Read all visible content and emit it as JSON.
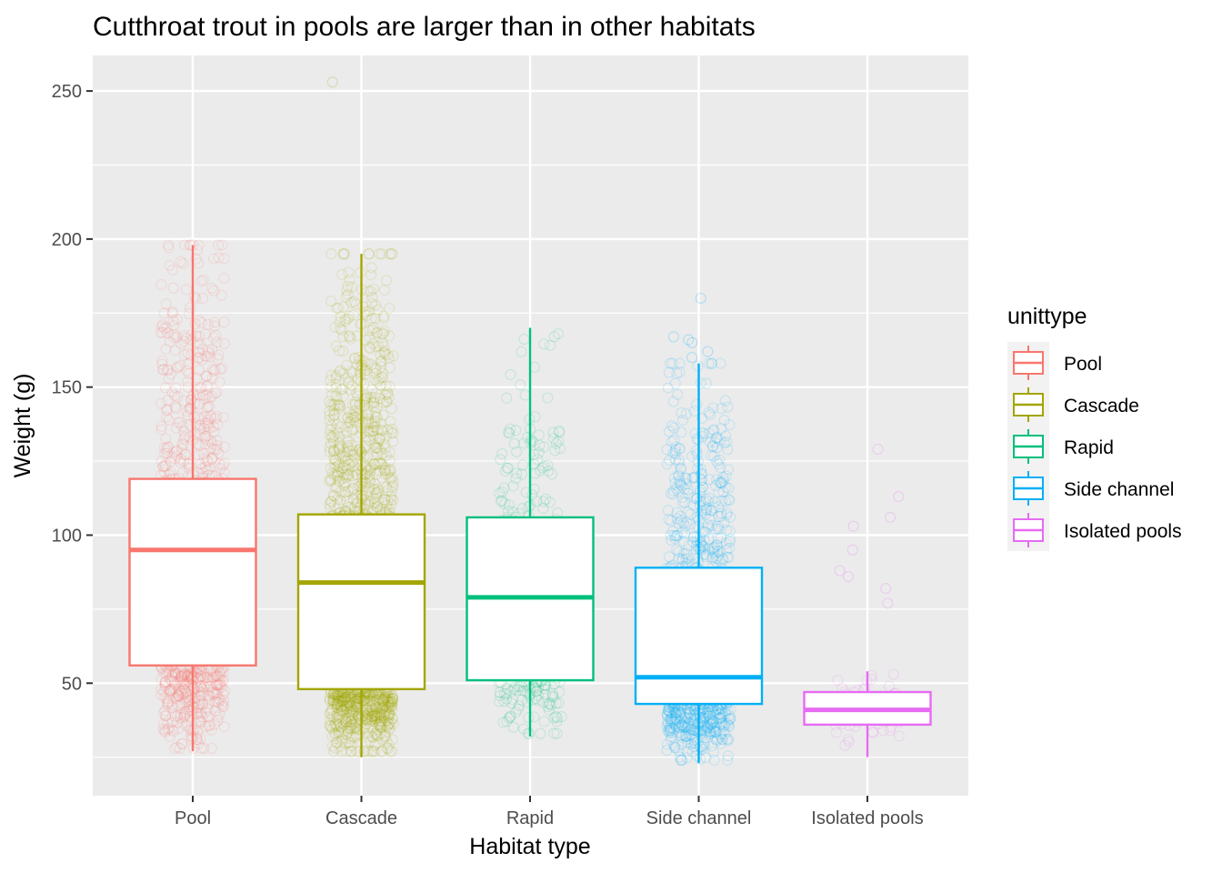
{
  "chart_data": {
    "type": "box",
    "title": "Cutthroat trout in pools are larger than in other habitats",
    "xlabel": "Habitat type",
    "ylabel": "Weight (g)",
    "ylim": [
      12,
      262
    ],
    "y_ticks": [
      50,
      100,
      150,
      200,
      250
    ],
    "y_minor_ticks": [
      25,
      75,
      125,
      175,
      225
    ],
    "grid": true,
    "legend": {
      "title": "unittype",
      "position": "right"
    },
    "categories": [
      "Pool",
      "Cascade",
      "Rapid",
      "Side channel",
      "Isolated pools"
    ],
    "series": [
      {
        "name": "Pool",
        "color": "#F8766D",
        "whisker_low": 27,
        "q1": 56,
        "median": 95,
        "q3": 119,
        "whisker_high": 198,
        "points": {
          "count": 1100,
          "min": 28,
          "max": 198,
          "outliers": []
        }
      },
      {
        "name": "Cascade",
        "color": "#A3A500",
        "whisker_low": 25,
        "q1": 48,
        "median": 84,
        "q3": 107,
        "whisker_high": 195,
        "points": {
          "count": 2000,
          "min": 27,
          "max": 195,
          "outliers": [
            253
          ]
        }
      },
      {
        "name": "Rapid",
        "color": "#00BF7D",
        "whisker_low": 32,
        "q1": 51,
        "median": 79,
        "q3": 106,
        "whisker_high": 170,
        "points": {
          "count": 320,
          "min": 33,
          "max": 168,
          "outliers": []
        }
      },
      {
        "name": "Side channel",
        "color": "#00B0F6",
        "whisker_low": 23,
        "q1": 43,
        "median": 52,
        "q3": 89,
        "whisker_high": 158,
        "points": {
          "count": 1050,
          "min": 24,
          "max": 158,
          "outliers": [
            180,
            167,
            166,
            165,
            162,
            160
          ]
        }
      },
      {
        "name": "Isolated pools",
        "color": "#E76BF3",
        "whisker_low": 25,
        "q1": 36,
        "median": 41,
        "q3": 47,
        "whisker_high": 54,
        "points": {
          "count": 60,
          "min": 26,
          "max": 54,
          "outliers": [
            129,
            113,
            106,
            103,
            95,
            88,
            86,
            82,
            77
          ]
        }
      }
    ]
  }
}
